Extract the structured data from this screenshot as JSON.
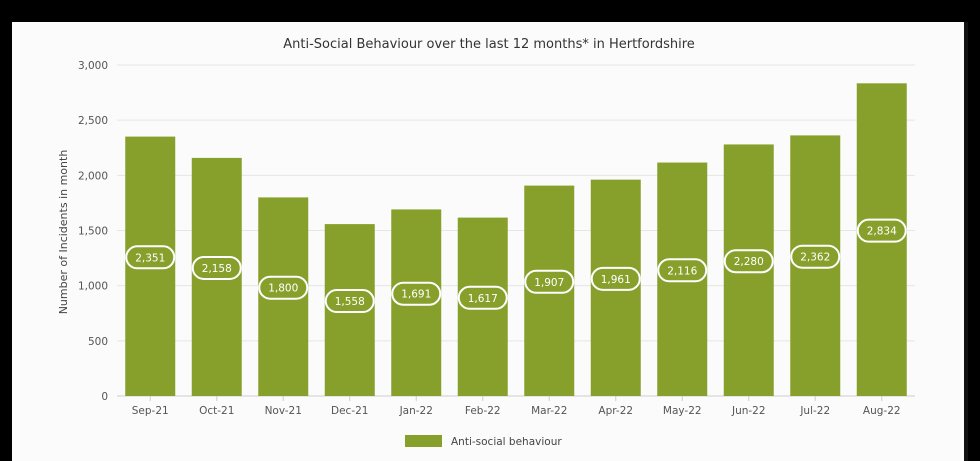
{
  "chart_data": {
    "type": "bar",
    "title": "Anti-Social Behaviour over the last 12 months* in Hertfordshire",
    "ylabel": "Number of Incidents in month",
    "xlabel": "",
    "categories": [
      "Sep-21",
      "Oct-21",
      "Nov-21",
      "Dec-21",
      "Jan-22",
      "Feb-22",
      "Mar-22",
      "Apr-22",
      "May-22",
      "Jun-22",
      "Jul-22",
      "Aug-22"
    ],
    "series": [
      {
        "name": "Anti-social behaviour",
        "values": [
          2351,
          2158,
          1800,
          1558,
          1691,
          1617,
          1907,
          1961,
          2116,
          2280,
          2362,
          2834
        ],
        "data_labels": [
          "2,351",
          "2,158",
          "1,800",
          "1,558",
          "1,691",
          "1,617",
          "1,907",
          "1,961",
          "2,116",
          "2,280",
          "2,362",
          "2,834"
        ]
      }
    ],
    "ylim": [
      0,
      3000
    ],
    "yticks": [
      0,
      500,
      1000,
      1500,
      2000,
      2500,
      3000
    ],
    "ytick_labels": [
      "0",
      "500",
      "1,000",
      "1,500",
      "2,000",
      "2,500",
      "3,000"
    ],
    "grid": true,
    "legend_position": "bottom",
    "colors": {
      "bar": "#87a02c",
      "label_pill": "#87a02c",
      "label_border": "#ffffff"
    }
  }
}
